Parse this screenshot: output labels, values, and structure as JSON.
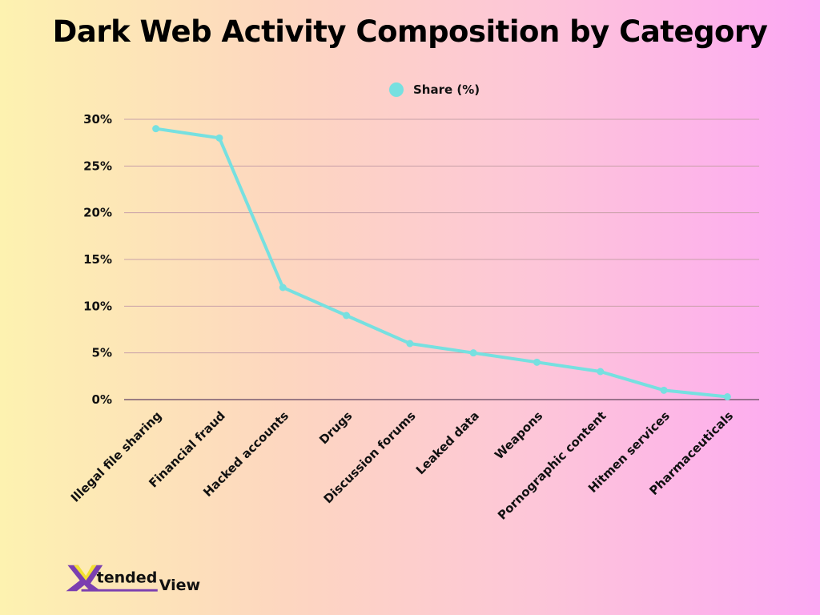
{
  "chart_data": {
    "type": "line",
    "title": "Dark Web Activity Composition by Category",
    "xlabel": "",
    "ylabel": "",
    "categories": [
      "Illegal file sharing",
      "Financial fraud",
      "Hacked accounts",
      "Drugs",
      "Discussion forums",
      "Leaked data",
      "Weapons",
      "Pornographic content",
      "Hitmen services",
      "Pharmaceuticals"
    ],
    "series": [
      {
        "name": "Share (%)",
        "values": [
          29,
          28,
          12,
          9,
          6,
          5,
          4,
          3,
          1,
          0.3
        ],
        "color": "#76e0e0"
      }
    ],
    "ylim": [
      0,
      30
    ],
    "yticks": [
      0,
      5,
      10,
      15,
      20,
      25,
      30
    ],
    "ytick_labels": [
      "0%",
      "5%",
      "10%",
      "15%",
      "20%",
      "25%",
      "30%"
    ],
    "grid": true,
    "legend_position": "top-center"
  },
  "logo": {
    "text": "XtendedView",
    "colors": {
      "purple": "#7b3fb0",
      "yellow": "#f2e030"
    }
  }
}
